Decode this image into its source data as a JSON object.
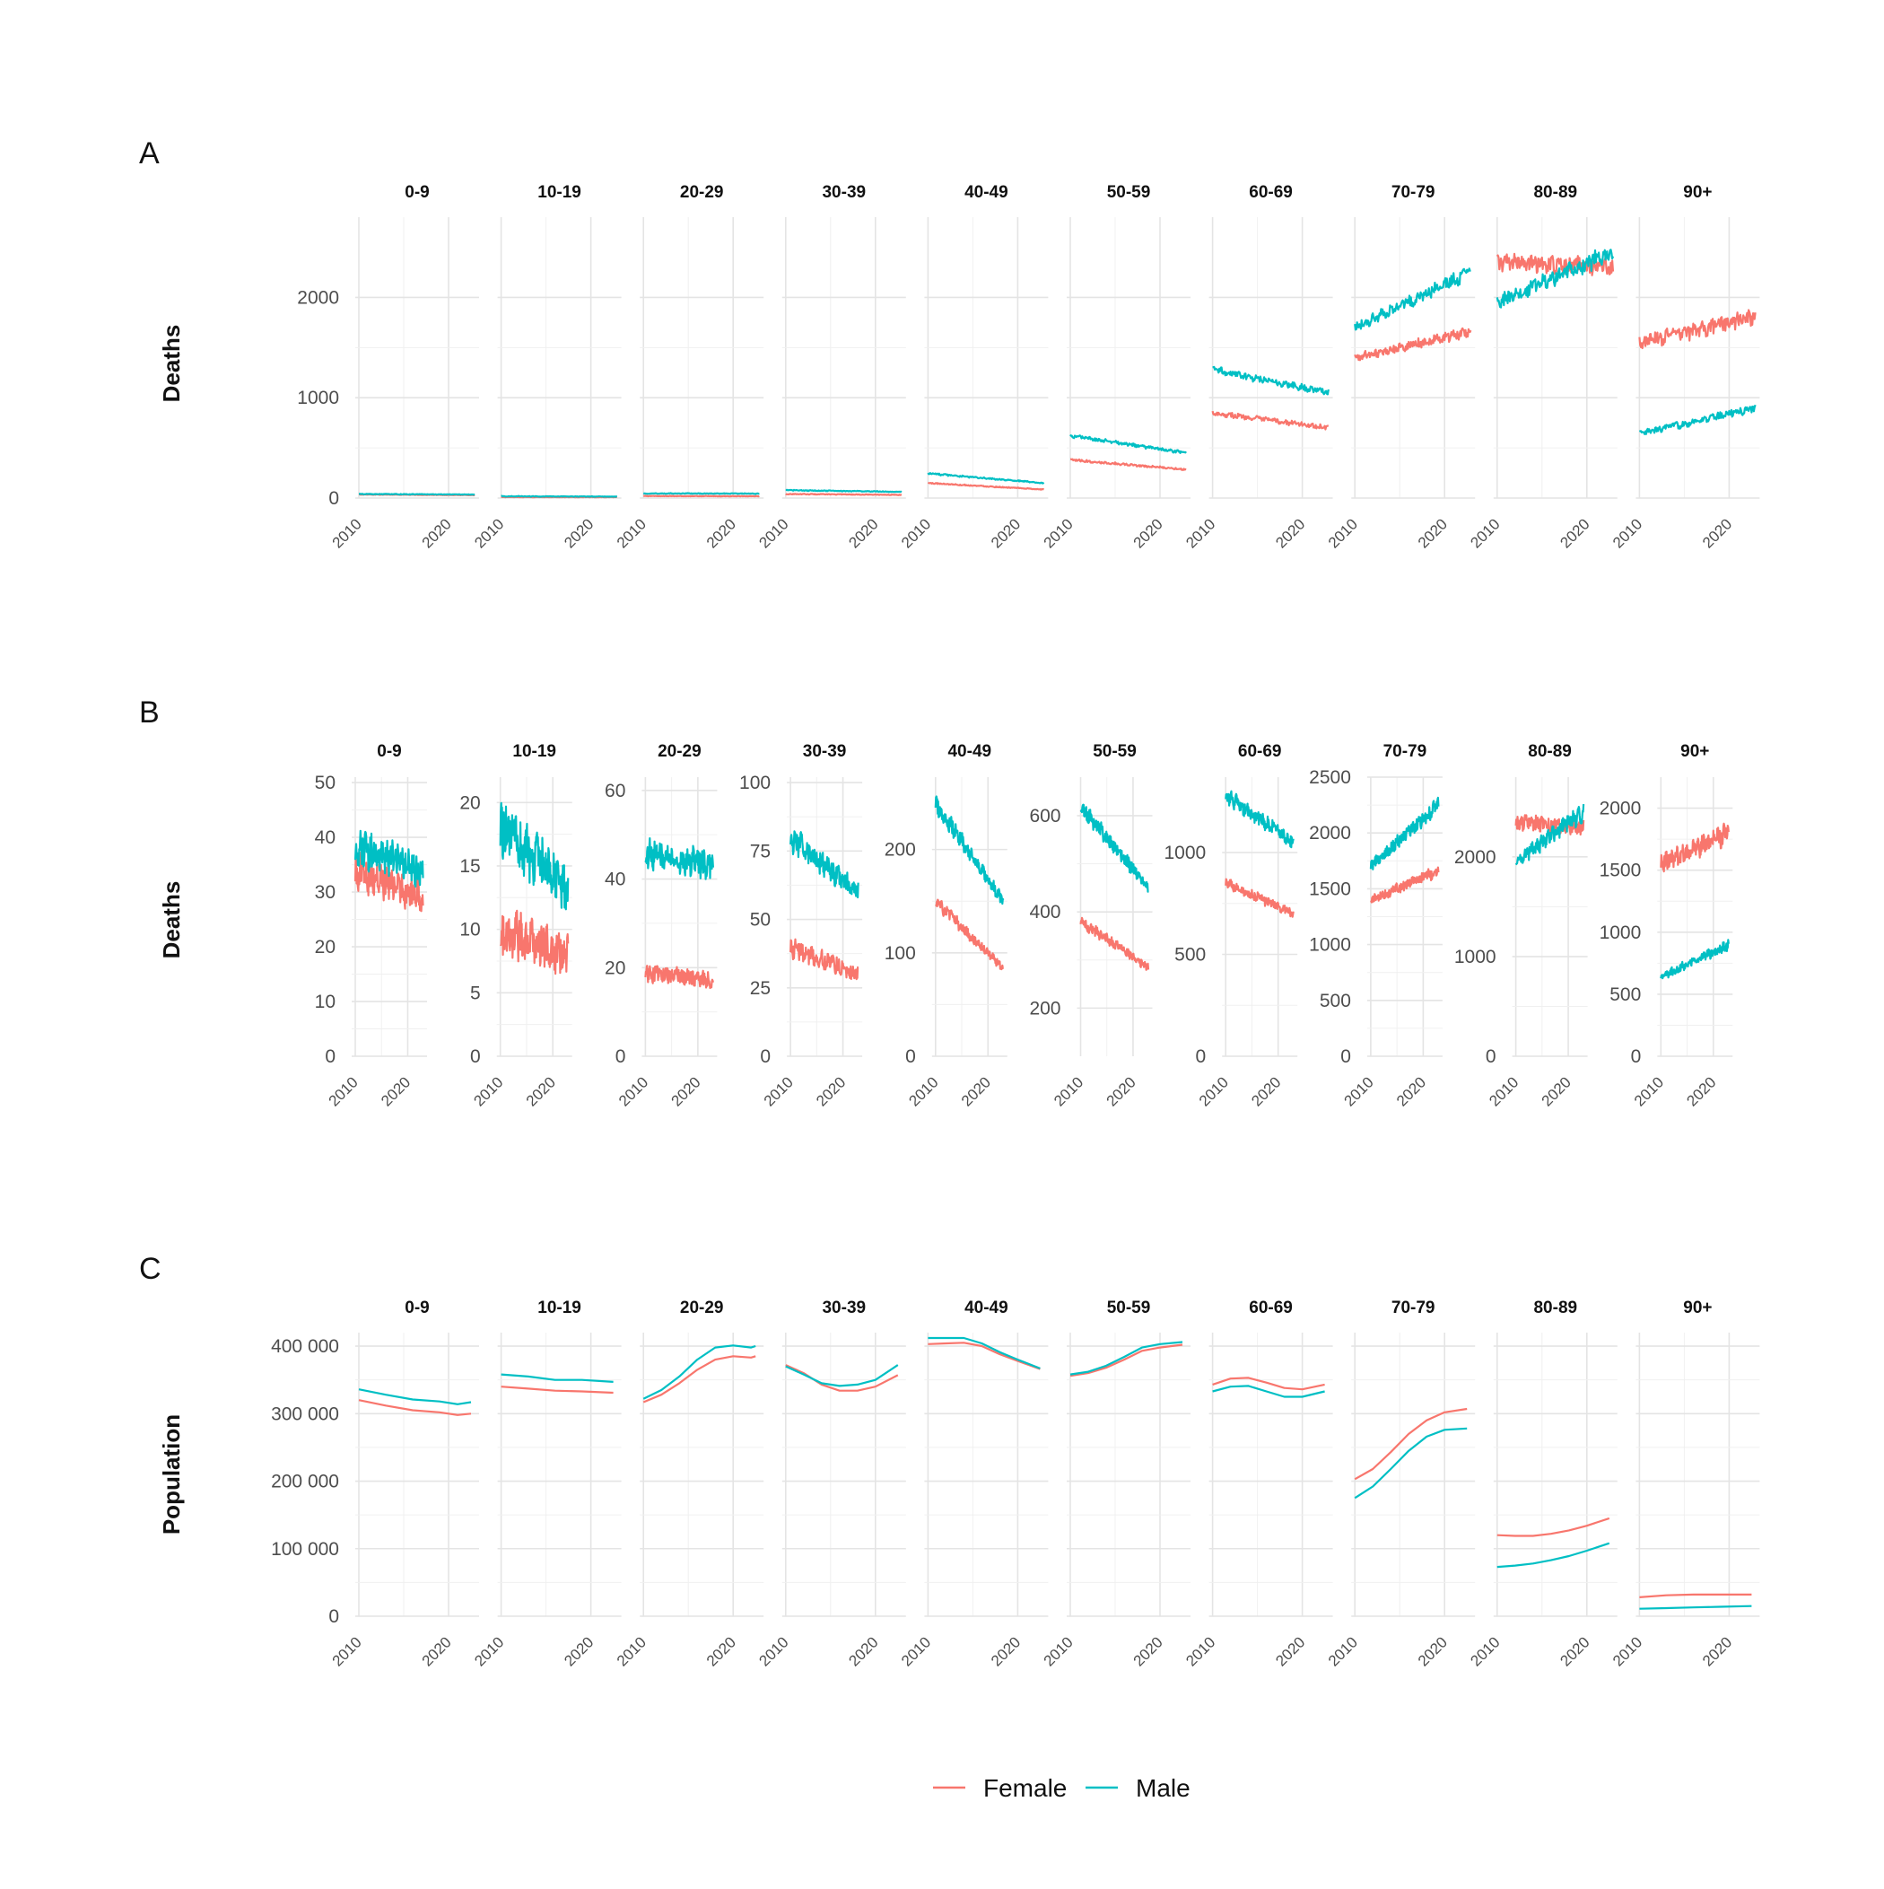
{
  "figure": {
    "legend": [
      {
        "label": "Female",
        "color": "#F8766D"
      },
      {
        "label": "Male",
        "color": "#00BFC4"
      }
    ]
  },
  "chart_data": [
    {
      "panel": "A",
      "type": "line",
      "ylabel": "Deaths",
      "facet_scales": "fixed",
      "facets": [
        "0-9",
        "10-19",
        "20-29",
        "30-39",
        "40-49",
        "50-59",
        "60-69",
        "70-79",
        "80-89",
        "90+"
      ],
      "x_range": [
        2010,
        2023
      ],
      "x_ticks": [
        2010,
        2020
      ],
      "y_ticks": [
        0,
        1000,
        2000
      ],
      "ylim": [
        0,
        2800
      ],
      "series_names": [
        "Female",
        "Male"
      ],
      "series_by_facet": [
        {
          "Female": {
            "start": 35,
            "end": 29,
            "noise": 0.12
          },
          "Male": {
            "start": 40,
            "end": 35,
            "noise": 0.12
          }
        },
        {
          "Female": {
            "start": 10,
            "end": 9,
            "noise": 0.3
          },
          "Male": {
            "start": 18,
            "end": 14,
            "noise": 0.3
          }
        },
        {
          "Female": {
            "start": 20,
            "end": 18,
            "noise": 0.2
          },
          "Male": {
            "start": 46,
            "end": 44,
            "noise": 0.12
          }
        },
        {
          "Female": {
            "start": 40,
            "end": 32,
            "noise": 0.15
          },
          "Male": {
            "start": 78,
            "end": 62,
            "noise": 0.1
          }
        },
        {
          "Female": {
            "start": 150,
            "end": 85,
            "noise": 0.07
          },
          "Male": {
            "start": 245,
            "end": 150,
            "noise": 0.06
          }
        },
        {
          "Female": {
            "start": 380,
            "end": 285,
            "noise": 0.05
          },
          "Male": {
            "start": 620,
            "end": 450,
            "noise": 0.05
          }
        },
        {
          "Female": {
            "start": 850,
            "end": 700,
            "noise": 0.05
          },
          "Male": {
            "start": 1280,
            "end": 1050,
            "noise": 0.05
          }
        },
        {
          "Female": {
            "start": 1400,
            "end": 1660,
            "noise": 0.05
          },
          "Male": {
            "start": 1700,
            "end": 2250,
            "noise": 0.05
          }
        },
        {
          "Female": {
            "start": 2350,
            "end": 2300,
            "noise": 0.06
          },
          "Male": {
            "start": 1950,
            "end": 2450,
            "noise": 0.06
          }
        },
        {
          "Female": {
            "start": 1550,
            "end": 1800,
            "noise": 0.08
          },
          "Male": {
            "start": 640,
            "end": 900,
            "noise": 0.08
          }
        }
      ]
    },
    {
      "panel": "B",
      "type": "line",
      "ylabel": "Deaths",
      "facet_scales": "free_y",
      "facets": [
        "0-9",
        "10-19",
        "20-29",
        "30-39",
        "40-49",
        "50-59",
        "60-69",
        "70-79",
        "80-89",
        "90+"
      ],
      "x_range": [
        2010,
        2023
      ],
      "x_ticks": [
        2010,
        2020
      ],
      "y_ticks_by_facet": [
        [
          0,
          10,
          20,
          30,
          40,
          50
        ],
        [
          0,
          5,
          10,
          15,
          20
        ],
        [
          0,
          20,
          40,
          60
        ],
        [
          0,
          25,
          50,
          75,
          100
        ],
        [
          0,
          100,
          200
        ],
        [
          200,
          400,
          600
        ],
        [
          0,
          500,
          1000
        ],
        [
          0,
          500,
          1000,
          1500,
          2000,
          2500
        ],
        [
          0,
          1000,
          2000
        ],
        [
          0,
          500,
          1000,
          1500,
          2000
        ]
      ],
      "ylim_by_facet": [
        [
          0,
          51
        ],
        [
          0,
          22
        ],
        [
          0,
          63
        ],
        [
          0,
          102
        ],
        [
          0,
          270
        ],
        [
          100,
          680
        ],
        [
          0,
          1370
        ],
        [
          0,
          2500
        ],
        [
          0,
          2800
        ],
        [
          0,
          2250
        ]
      ],
      "series_names": [
        "Female",
        "Male"
      ],
      "series_by_facet": [
        {
          "Female": {
            "start": 34,
            "end": 29,
            "noise": 0.16
          },
          "Male": {
            "start": 38,
            "end": 34,
            "noise": 0.15
          }
        },
        {
          "Female": {
            "start": 10,
            "end": 8,
            "noise": 0.33
          },
          "Male": {
            "start": 18,
            "end": 13,
            "noise": 0.22
          }
        },
        {
          "Female": {
            "start": 19,
            "end": 17,
            "noise": 0.18
          },
          "Male": {
            "start": 46,
            "end": 43,
            "noise": 0.12
          }
        },
        {
          "Female": {
            "start": 40,
            "end": 30,
            "noise": 0.15
          },
          "Male": {
            "start": 80,
            "end": 60,
            "noise": 0.1
          }
        },
        {
          "Female": {
            "start": 150,
            "end": 85,
            "noise": 0.07
          },
          "Male": {
            "start": 245,
            "end": 150,
            "noise": 0.06
          }
        },
        {
          "Female": {
            "start": 380,
            "end": 285,
            "noise": 0.05
          },
          "Male": {
            "start": 620,
            "end": 450,
            "noise": 0.05
          }
        },
        {
          "Female": {
            "start": 850,
            "end": 700,
            "noise": 0.05
          },
          "Male": {
            "start": 1280,
            "end": 1050,
            "noise": 0.05
          }
        },
        {
          "Female": {
            "start": 1400,
            "end": 1660,
            "noise": 0.05
          },
          "Male": {
            "start": 1700,
            "end": 2250,
            "noise": 0.05
          }
        },
        {
          "Female": {
            "start": 2350,
            "end": 2300,
            "noise": 0.06
          },
          "Male": {
            "start": 1950,
            "end": 2450,
            "noise": 0.06
          }
        },
        {
          "Female": {
            "start": 1550,
            "end": 1800,
            "noise": 0.08
          },
          "Male": {
            "start": 640,
            "end": 900,
            "noise": 0.08
          }
        }
      ]
    },
    {
      "panel": "C",
      "type": "line",
      "ylabel": "Population",
      "facet_scales": "fixed",
      "facets": [
        "0-9",
        "10-19",
        "20-29",
        "30-39",
        "40-49",
        "50-59",
        "60-69",
        "70-79",
        "80-89",
        "90+"
      ],
      "x_range": [
        2010,
        2023
      ],
      "x_ticks": [
        2010,
        2020
      ],
      "y_ticks": [
        0,
        100000,
        200000,
        300000,
        400000
      ],
      "y_tick_labels": [
        "0",
        "100 000",
        "200 000",
        "300 000",
        "400 000"
      ],
      "ylim": [
        0,
        420000
      ],
      "series_names": [
        "Female",
        "Male"
      ],
      "series_by_facet": [
        {
          "Female": {
            "x": [
              2010,
              2013,
              2016,
              2019,
              2021,
              2022.5
            ],
            "y": [
              320000,
              312000,
              305000,
              302000,
              298000,
              300000
            ]
          },
          "Male": {
            "x": [
              2010,
              2013,
              2016,
              2019,
              2021,
              2022.5
            ],
            "y": [
              336000,
              328000,
              321000,
              318000,
              314000,
              317000
            ]
          }
        },
        {
          "Female": {
            "x": [
              2010,
              2013,
              2016,
              2019,
              2022.5
            ],
            "y": [
              340000,
              337000,
              334000,
              333000,
              331000
            ]
          },
          "Male": {
            "x": [
              2010,
              2013,
              2016,
              2019,
              2022.5
            ],
            "y": [
              358000,
              355000,
              350000,
              350000,
              347000
            ]
          }
        },
        {
          "Female": {
            "x": [
              2010,
              2012,
              2014,
              2016,
              2018,
              2020,
              2022,
              2022.5
            ],
            "y": [
              317000,
              328000,
              345000,
              365000,
              380000,
              385000,
              383000,
              385000
            ]
          },
          "Male": {
            "x": [
              2010,
              2012,
              2014,
              2016,
              2018,
              2020,
              2022,
              2022.5
            ],
            "y": [
              322000,
              335000,
              355000,
              380000,
              398000,
              401000,
              398000,
              400000
            ]
          }
        },
        {
          "Female": {
            "x": [
              2010,
              2012,
              2014,
              2016,
              2018,
              2020,
              2022.5
            ],
            "y": [
              372000,
              360000,
              343000,
              334000,
              334000,
              340000,
              357000
            ]
          },
          "Male": {
            "x": [
              2010,
              2012,
              2014,
              2016,
              2018,
              2020,
              2022.5
            ],
            "y": [
              370000,
              358000,
              345000,
              341000,
              343000,
              350000,
              372000
            ]
          }
        },
        {
          "Female": {
            "x": [
              2010,
              2012,
              2014,
              2016,
              2018,
              2020,
              2022.5
            ],
            "y": [
              403000,
              404000,
              405000,
              400000,
              388000,
              378000,
              366000
            ]
          },
          "Male": {
            "x": [
              2010,
              2012,
              2014,
              2016,
              2018,
              2020,
              2022.5
            ],
            "y": [
              412000,
              412000,
              412000,
              404000,
              391000,
              380000,
              367000
            ]
          }
        },
        {
          "Female": {
            "x": [
              2010,
              2012,
              2014,
              2016,
              2018,
              2020,
              2022.5
            ],
            "y": [
              356000,
              360000,
              368000,
              380000,
              393000,
              398000,
              402000
            ]
          },
          "Male": {
            "x": [
              2010,
              2012,
              2014,
              2016,
              2018,
              2020,
              2022.5
            ],
            "y": [
              358000,
              362000,
              371000,
              384000,
              398000,
              403000,
              406000
            ]
          }
        },
        {
          "Female": {
            "x": [
              2010,
              2012,
              2014,
              2016,
              2018,
              2020,
              2022.5
            ],
            "y": [
              343000,
              352000,
              353000,
              346000,
              338000,
              336000,
              343000
            ]
          },
          "Male": {
            "x": [
              2010,
              2012,
              2014,
              2016,
              2018,
              2020,
              2022.5
            ],
            "y": [
              333000,
              340000,
              341000,
              333000,
              325000,
              325000,
              333000
            ]
          }
        },
        {
          "Female": {
            "x": [
              2010,
              2012,
              2014,
              2016,
              2018,
              2020,
              2022.5
            ],
            "y": [
              203000,
              218000,
              243000,
              270000,
              290000,
              302000,
              307000
            ]
          },
          "Male": {
            "x": [
              2010,
              2012,
              2014,
              2016,
              2018,
              2020,
              2022.5
            ],
            "y": [
              175000,
              192000,
              218000,
              245000,
              266000,
              276000,
              278000
            ]
          }
        },
        {
          "Female": {
            "x": [
              2010,
              2012,
              2014,
              2016,
              2018,
              2020,
              2022.5
            ],
            "y": [
              120000,
              119000,
              119000,
              122000,
              127000,
              134000,
              145000
            ]
          },
          "Male": {
            "x": [
              2010,
              2012,
              2014,
              2016,
              2018,
              2020,
              2022.5
            ],
            "y": [
              73000,
              75000,
              78000,
              83000,
              89000,
              97000,
              108000
            ]
          }
        },
        {
          "Female": {
            "x": [
              2010,
              2013,
              2016,
              2019,
              2022.5
            ],
            "y": [
              28000,
              31000,
              32000,
              32000,
              32000
            ]
          },
          "Male": {
            "x": [
              2010,
              2013,
              2016,
              2019,
              2022.5
            ],
            "y": [
              11000,
              12000,
              13000,
              14000,
              15000
            ]
          }
        }
      ]
    }
  ]
}
